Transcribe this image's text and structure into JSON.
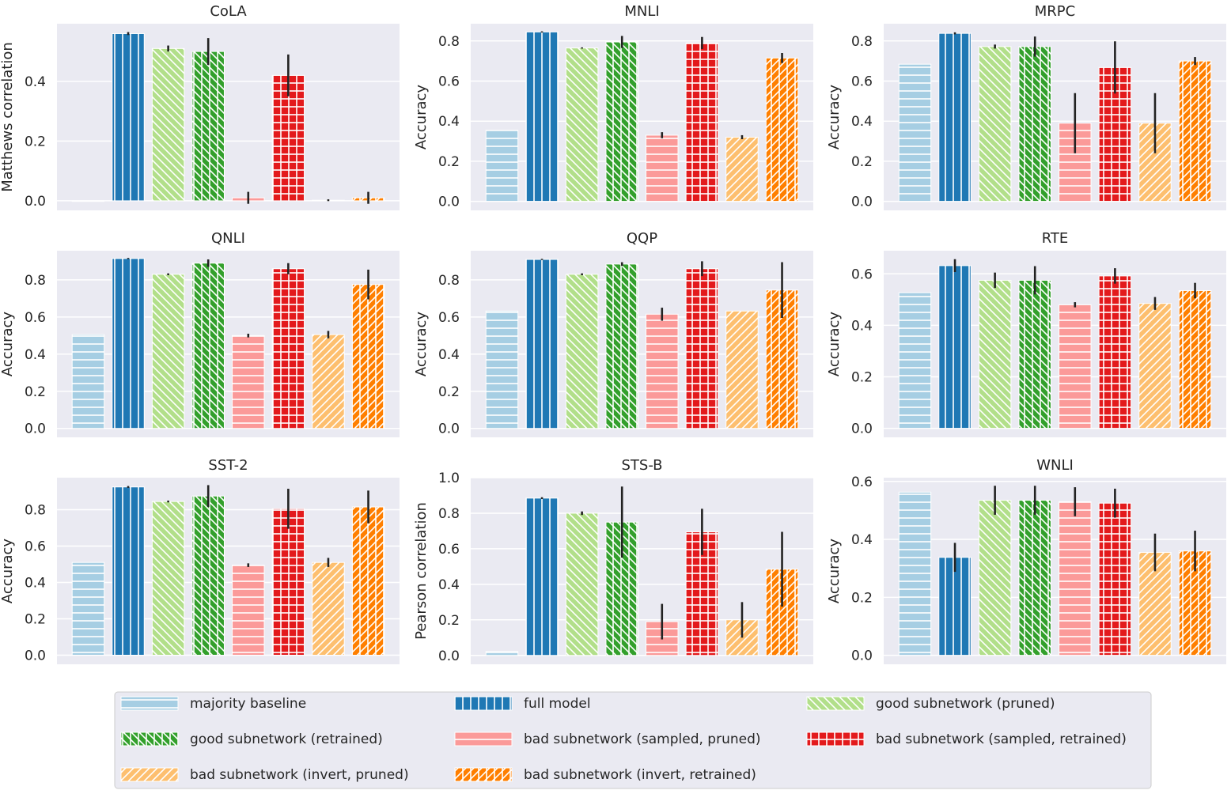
{
  "chart_data": {
    "type": "bar",
    "categories": [
      "majority baseline",
      "full model",
      "good subnetwork (pruned)",
      "good subnetwork (retrained)",
      "bad subnetwork (sampled, pruned)",
      "bad subnetwork (sampled, retrained)",
      "bad subnetwork (invert, pruned)",
      "bad subnetwork (invert, retrained)"
    ],
    "colors": [
      "#a6cee3",
      "#1f78b4",
      "#b2df8a",
      "#33a02c",
      "#fb9a99",
      "#e31a1c",
      "#fdbf6f",
      "#ff7f00"
    ],
    "hatches": [
      "-",
      "|",
      "\\",
      "|\\",
      "-",
      "+",
      "/",
      "/|"
    ],
    "legend_placement": "bottom",
    "grid": true,
    "panels": [
      {
        "title": "CoLA",
        "ylabel": "Matthews correlation",
        "ylim": [
          -0.032,
          0.593
        ],
        "yticks": [
          "0.0",
          "0.2",
          "0.4"
        ],
        "ytick_values": [
          0,
          0.2,
          0.4
        ],
        "values": [
          0,
          0.56,
          0.51,
          0.5,
          0.01,
          0.42,
          0.002,
          0.01
        ],
        "errors": [
          0,
          0.005,
          0.01,
          0.045,
          0.02,
          0.07,
          0.003,
          0.02
        ]
      },
      {
        "title": "MNLI",
        "ylabel": "Accuracy",
        "ylim": [
          -0.045,
          0.886
        ],
        "yticks": [
          "0.0",
          "0.2",
          "0.4",
          "0.6",
          "0.8"
        ],
        "ytick_values": [
          0,
          0.2,
          0.4,
          0.6,
          0.8
        ],
        "values": [
          0.354,
          0.845,
          0.765,
          0.795,
          0.33,
          0.79,
          0.32,
          0.715
        ],
        "errors": [
          0,
          0.003,
          0.003,
          0.03,
          0.015,
          0.03,
          0.01,
          0.025
        ]
      },
      {
        "title": "MRPC",
        "ylabel": "Accuracy",
        "ylim": [
          -0.045,
          0.886
        ],
        "yticks": [
          "0.0",
          "0.2",
          "0.4",
          "0.6",
          "0.8"
        ],
        "ytick_values": [
          0,
          0.2,
          0.4,
          0.6,
          0.8
        ],
        "values": [
          0.684,
          0.838,
          0.772,
          0.772,
          0.39,
          0.668,
          0.39,
          0.7
        ],
        "errors": [
          0,
          0.005,
          0.01,
          0.05,
          0.15,
          0.13,
          0.15,
          0.02
        ]
      },
      {
        "title": "QNLI",
        "ylabel": "Accuracy",
        "ylim": [
          -0.048,
          0.957
        ],
        "yticks": [
          "0.0",
          "0.2",
          "0.4",
          "0.6",
          "0.8"
        ],
        "ytick_values": [
          0,
          0.2,
          0.4,
          0.6,
          0.8
        ],
        "values": [
          0.505,
          0.915,
          0.83,
          0.89,
          0.5,
          0.86,
          0.505,
          0.775
        ],
        "errors": [
          0,
          0.003,
          0.005,
          0.02,
          0.01,
          0.03,
          0.02,
          0.08
        ]
      },
      {
        "title": "QQP",
        "ylabel": "Accuracy",
        "ylim": [
          -0.048,
          0.957
        ],
        "yticks": [
          "0.0",
          "0.2",
          "0.4",
          "0.6",
          "0.8"
        ],
        "ytick_values": [
          0,
          0.2,
          0.4,
          0.6,
          0.8
        ],
        "values": [
          0.632,
          0.91,
          0.83,
          0.885,
          0.615,
          0.86,
          0.632,
          0.745
        ],
        "errors": [
          0,
          0.003,
          0.005,
          0.01,
          0.035,
          0.04,
          0,
          0.15
        ]
      },
      {
        "title": "RTE",
        "ylabel": "Accuracy",
        "ylim": [
          -0.035,
          0.69
        ],
        "yticks": [
          "0.0",
          "0.2",
          "0.4",
          "0.6"
        ],
        "ytick_values": [
          0,
          0.2,
          0.4,
          0.6
        ],
        "values": [
          0.527,
          0.632,
          0.575,
          0.575,
          0.48,
          0.592,
          0.485,
          0.535
        ],
        "errors": [
          0,
          0.025,
          0.03,
          0.055,
          0.01,
          0.03,
          0.025,
          0.03
        ]
      },
      {
        "title": "SST-2",
        "ylabel": "Accuracy",
        "ylim": [
          -0.05,
          0.976
        ],
        "yticks": [
          "0.0",
          "0.2",
          "0.4",
          "0.6",
          "0.8"
        ],
        "ytick_values": [
          0,
          0.2,
          0.4,
          0.6,
          0.8
        ],
        "values": [
          0.51,
          0.925,
          0.845,
          0.875,
          0.495,
          0.805,
          0.51,
          0.815
        ],
        "errors": [
          0,
          0.005,
          0.005,
          0.06,
          0.01,
          0.11,
          0.025,
          0.09
        ]
      },
      {
        "title": "STS-B",
        "ylabel": "Pearson correlation",
        "ylim": [
          -0.05,
          1.0
        ],
        "yticks": [
          "0.0",
          "0.2",
          "0.4",
          "0.6",
          "0.8",
          "1.0"
        ],
        "ytick_values": [
          0,
          0.2,
          0.4,
          0.6,
          0.8,
          1.0
        ],
        "values": [
          0.022,
          0.885,
          0.8,
          0.75,
          0.19,
          0.695,
          0.2,
          0.485
        ],
        "errors": [
          0,
          0.005,
          0.01,
          0.2,
          0.1,
          0.13,
          0.1,
          0.21
        ]
      },
      {
        "title": "WNLI",
        "ylabel": "Accuracy",
        "ylim": [
          -0.031,
          0.613
        ],
        "yticks": [
          "0.0",
          "0.2",
          "0.4",
          "0.6"
        ],
        "ytick_values": [
          0,
          0.2,
          0.4,
          0.6
        ],
        "values": [
          0.563,
          0.338,
          0.535,
          0.535,
          0.53,
          0.525,
          0.355,
          0.36
        ],
        "errors": [
          0,
          0.05,
          0.05,
          0.05,
          0.05,
          0.05,
          0.065,
          0.07
        ]
      }
    ]
  }
}
